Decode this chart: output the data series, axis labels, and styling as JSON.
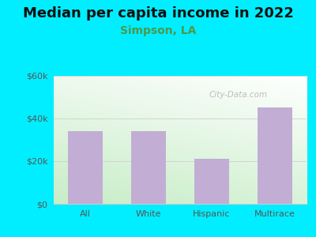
{
  "title": "Median per capita income in 2022",
  "subtitle": "Simpson, LA",
  "categories": [
    "All",
    "White",
    "Hispanic",
    "Multirace"
  ],
  "values": [
    34000,
    34000,
    21000,
    45000
  ],
  "bar_color": "#c2aed4",
  "title_fontsize": 13,
  "subtitle_fontsize": 10,
  "subtitle_color": "#4a9a4a",
  "title_color": "#111111",
  "tick_color": "#555555",
  "ylim": [
    0,
    60000
  ],
  "yticks": [
    0,
    20000,
    40000,
    60000
  ],
  "ytick_labels": [
    "$0",
    "$20k",
    "$40k",
    "$60k"
  ],
  "background_outer": "#00eeff",
  "watermark": "City-Data.com",
  "grid_color": "#cccccc",
  "grad_bottom_left": "#c8eec0",
  "grad_top_right": "#ffffff"
}
